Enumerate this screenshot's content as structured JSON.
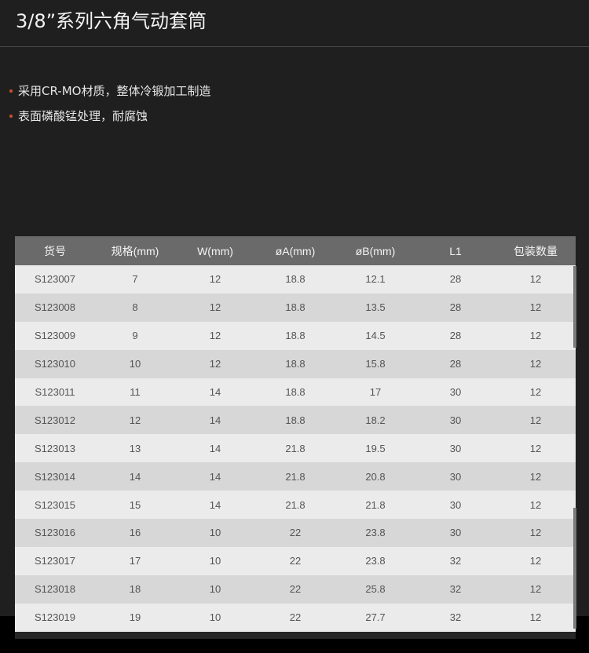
{
  "title": "3/8”系列六角气动套筒",
  "features": [
    "采用CR-MO材质，整体冷锻加工制造",
    "表面磷酸锰处理，耐腐蚀"
  ],
  "colors": {
    "background": "#1f1f1f",
    "header": "#6a6a6a",
    "bullet": "#d0502c"
  },
  "table": {
    "headers": [
      "货号",
      "规格(mm)",
      "W(mm)",
      "øA(mm)",
      "øB(mm)",
      "L1",
      "包装数量"
    ],
    "rows": [
      [
        "S123007",
        "7",
        "12",
        "18.8",
        "12.1",
        "28",
        "12"
      ],
      [
        "S123008",
        "8",
        "12",
        "18.8",
        "13.5",
        "28",
        "12"
      ],
      [
        "S123009",
        "9",
        "12",
        "18.8",
        "14.5",
        "28",
        "12"
      ],
      [
        "S123010",
        "10",
        "12",
        "18.8",
        "15.8",
        "28",
        "12"
      ],
      [
        "S123011",
        "11",
        "14",
        "18.8",
        "17",
        "30",
        "12"
      ],
      [
        "S123012",
        "12",
        "14",
        "18.8",
        "18.2",
        "30",
        "12"
      ],
      [
        "S123013",
        "13",
        "14",
        "21.8",
        "19.5",
        "30",
        "12"
      ],
      [
        "S123014",
        "14",
        "14",
        "21.8",
        "20.8",
        "30",
        "12"
      ],
      [
        "S123015",
        "15",
        "14",
        "21.8",
        "21.8",
        "30",
        "12"
      ],
      [
        "S123016",
        "16",
        "10",
        "22",
        "23.8",
        "30",
        "12"
      ],
      [
        "S123017",
        "17",
        "10",
        "22",
        "23.8",
        "32",
        "12"
      ],
      [
        "S123018",
        "18",
        "10",
        "22",
        "25.8",
        "32",
        "12"
      ],
      [
        "S123019",
        "19",
        "10",
        "22",
        "27.7",
        "32",
        "12"
      ]
    ]
  }
}
